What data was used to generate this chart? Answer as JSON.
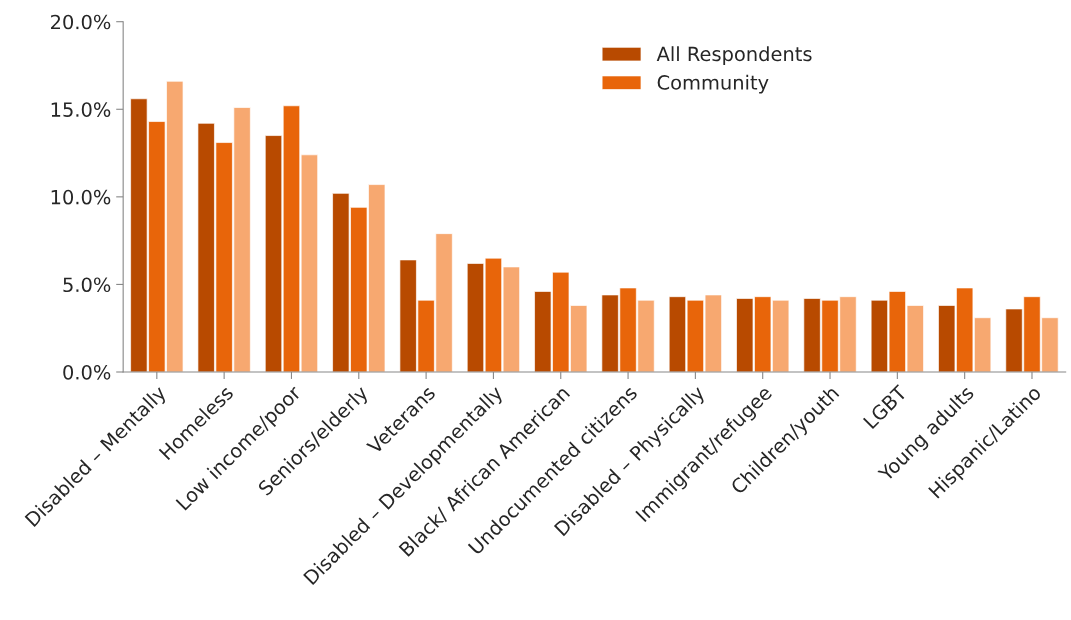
{
  "chart_data": {
    "type": "bar",
    "categories": [
      "Disabled – Mentally",
      "Homeless",
      "Low income/poor",
      "Seniors/elderly",
      "Veterans",
      "Disabled – Developmentally",
      "Black/ African American",
      "Undocumented citizens",
      "Disabled – Physically",
      "Immigrant/refugee",
      "Children/youth",
      "LGBT",
      "Young adults",
      "Hispanic/Latino"
    ],
    "series": [
      {
        "name": "All Respondents",
        "color": "#b84a00",
        "values": [
          15.6,
          14.2,
          13.5,
          10.2,
          6.4,
          6.2,
          4.6,
          4.4,
          4.3,
          4.2,
          4.2,
          4.1,
          3.8,
          3.6
        ]
      },
      {
        "name": "Community",
        "color": "#e8650a",
        "values": [
          14.3,
          13.1,
          15.2,
          9.4,
          4.1,
          6.5,
          5.7,
          4.8,
          4.1,
          4.3,
          4.1,
          4.6,
          4.8,
          4.3
        ]
      },
      {
        "color": "#f7a870",
        "values": [
          16.6,
          15.1,
          12.4,
          10.7,
          7.9,
          6.0,
          3.8,
          4.1,
          4.4,
          4.1,
          4.3,
          3.8,
          3.1,
          3.1
        ]
      }
    ],
    "ylim": [
      0,
      20
    ],
    "yticks": [
      {
        "value": 0,
        "label": "0.0%"
      },
      {
        "value": 5,
        "label": "5.0%"
      },
      {
        "value": 10,
        "label": "10.0%"
      },
      {
        "value": 15,
        "label": "15.0%"
      },
      {
        "value": 20,
        "label": "20.0%"
      }
    ],
    "grid": false,
    "legend": "top right"
  }
}
